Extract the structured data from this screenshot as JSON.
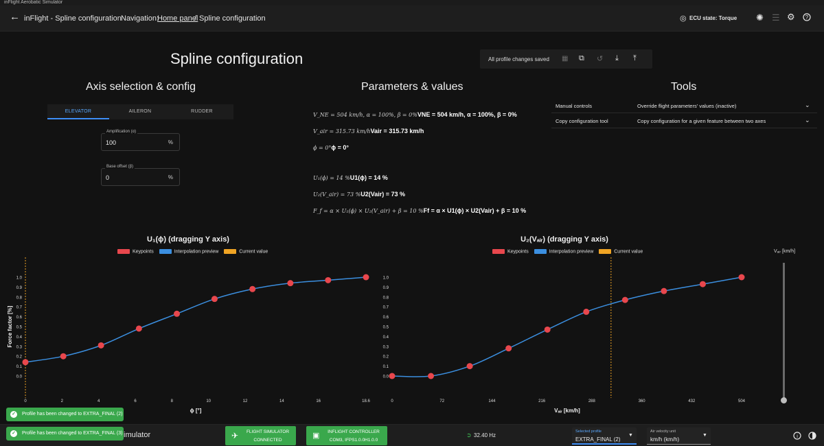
{
  "window_title": "inFlight Aerobatic Simulator",
  "header": {
    "back_icon": "arrow-left-icon",
    "app_title": "inFlight - Spline configuration",
    "nav_label": "Navigation:",
    "nav_link": "Home panel",
    "nav_sep": "/",
    "nav_current": "Spline configuration",
    "ecu_state": "ECU state: Torque"
  },
  "page_title": "Spline configuration",
  "save_bar": {
    "status": "All profile changes saved"
  },
  "axis": {
    "heading": "Axis selection & config",
    "tabs": [
      "ELEVATOR",
      "AILERON",
      "RUDDER"
    ],
    "active_tab": 0,
    "amplification": {
      "label": "Amplification (α)",
      "value": "100",
      "unit": "%"
    },
    "base_offset": {
      "label": "Base offset (β)",
      "value": "0",
      "unit": "%"
    }
  },
  "params": {
    "heading": "Parameters & values",
    "vne_math": "V_NE = 504 km/h, α = 100%, β = 0%",
    "vne_text": "VNE = 504 km/h, α = 100%, β = 0%",
    "vair_math": "V_air = 315.73 km/h",
    "vair_text": "Vair = 315.73 km/h",
    "phi_math": "ϕ = 0°",
    "phi_text": "ϕ = 0°",
    "u1_math": "U₁(ϕ) = 14 %",
    "u1_text": "U1(ϕ) = 14 %",
    "u2_math": "U₂(V_air) = 73 %",
    "u2_text": "U2(Vair) = 73 %",
    "ff_math": "F_f = α × U₁(ϕ) × U₂(V_air) + β = 10 %",
    "ff_text": "Ff = α × U1(ϕ) × U2(Vair) + β = 10 %"
  },
  "tools": {
    "heading": "Tools",
    "rows": [
      {
        "name": "Manual controls",
        "desc": "Override flight parameters' values (inactive)"
      },
      {
        "name": "Copy configuration tool",
        "desc": "Copy configuration for a given feature between two axes"
      }
    ]
  },
  "legend": {
    "keypoints": "Keypoints",
    "interp": "Interpolation preview",
    "current": "Current value"
  },
  "colors": {
    "keypoint": "#e8474d",
    "curve": "#3b8fe0",
    "current": "#f0a424",
    "green": "#3aa84c",
    "accent": "#3e8ef7"
  },
  "chart_data": [
    {
      "type": "line",
      "title": "U₁(ϕ) (dragging Y axis)",
      "xlabel": "ϕ [°]",
      "ylabel": "Force factor [%]",
      "xlim": [
        0,
        18.6
      ],
      "ylim": [
        0,
        1.05
      ],
      "x_ticks": [
        "0",
        "2",
        "4",
        "6",
        "8",
        "10",
        "12",
        "14",
        "16",
        "18.6"
      ],
      "y_ticks": [
        "0.0",
        "0.1",
        "0.2",
        "0.3",
        "0.4",
        "0.5",
        "0.6",
        "0.7",
        "0.8",
        "0.9",
        "1.0"
      ],
      "keypoints": {
        "x": [
          0,
          2.07,
          4.13,
          6.2,
          8.27,
          10.33,
          12.4,
          14.47,
          16.53,
          18.6
        ],
        "y": [
          0.14,
          0.2,
          0.31,
          0.48,
          0.63,
          0.78,
          0.88,
          0.94,
          0.97,
          1.0
        ]
      },
      "current_x": 0
    },
    {
      "type": "line",
      "title": "U₂(Vₐᵢᵣ) (dragging Y axis)",
      "xlabel": "Vₐᵢᵣ [km/h]",
      "ylabel": "",
      "xlim": [
        0,
        504
      ],
      "ylim": [
        0,
        1.05
      ],
      "x_ticks": [
        "0",
        "72",
        "144",
        "216",
        "288",
        "360",
        "432",
        "504"
      ],
      "y_ticks": [
        "0.0",
        "0.1",
        "0.2",
        "0.3",
        "0.4",
        "0.5",
        "0.6",
        "0.7",
        "0.8",
        "0.9",
        "1.0"
      ],
      "keypoints": {
        "x": [
          0,
          56,
          112,
          168,
          224,
          280,
          336,
          392,
          448,
          504
        ],
        "y": [
          0.0,
          0.0,
          0.1,
          0.28,
          0.47,
          0.65,
          0.77,
          0.86,
          0.93,
          1.0
        ]
      },
      "current_x": 315.73
    }
  ],
  "slider": {
    "label": "Vₐᵢᵣ [km/h]",
    "value_fraction": 0.0
  },
  "status": {
    "app_name_partial": "imulator",
    "sim_line1": "FLIGHT SIMULATOR",
    "sim_line2": "CONNECTED",
    "ctrl_line1": "INFLIGHT CONTROLLER",
    "ctrl_line2": "COM3, IFPS1.0.0H1.0.0",
    "rate": "32.40 Hz",
    "profile_label": "Selected profile",
    "profile_value": "EXTRA_FINAL (2)",
    "unit_label": "Air velocity unit",
    "unit_value": "km/h (km/h)"
  },
  "toasts": [
    "Profile has been changed to EXTRA_FINAL (2)",
    "Profile has been changed to EXTRA_FINAL (3)"
  ]
}
